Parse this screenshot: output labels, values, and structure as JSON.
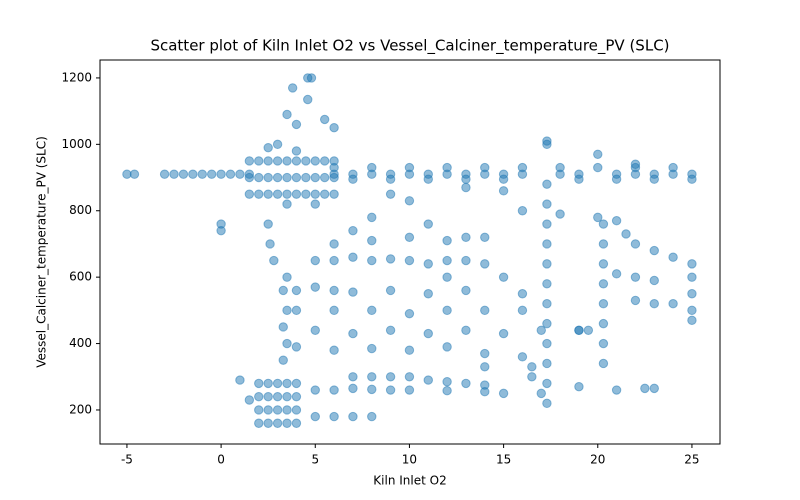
{
  "chart_data": {
    "type": "scatter",
    "title": "Scatter plot of Kiln Inlet O2 vs Vessel_Calciner_temperature_PV (SLC)",
    "x_label": "Kiln Inlet O2",
    "y_label": "Vessel_Calciner_temperature_PV (SLC)",
    "color": "#1f77b4",
    "grid": false,
    "xlim": [
      -6.43,
      26.49
    ],
    "ylim": [
      97.5,
      1254
    ],
    "xticks": [
      -5,
      0,
      5,
      10,
      15,
      20,
      25
    ],
    "yticks": [
      200,
      400,
      600,
      800,
      1000,
      1200
    ],
    "x": [
      -3,
      -2.5,
      -2,
      -1.5,
      -1,
      -0.5,
      0,
      0.5,
      1,
      1.5,
      6,
      7,
      8,
      9,
      10,
      11,
      12,
      13,
      14,
      15,
      16,
      18,
      19,
      21,
      22,
      23,
      24,
      25,
      6,
      8,
      10,
      12,
      14,
      16,
      18,
      20,
      22,
      24,
      7,
      9,
      11,
      13,
      15,
      19,
      21,
      23,
      25,
      1.5,
      1.5,
      1.5,
      2,
      2,
      2,
      2.5,
      2.5,
      2.5,
      3,
      3,
      3,
      3.5,
      3.5,
      3.5,
      4,
      4,
      4,
      4.5,
      4.5,
      4.5,
      5,
      5,
      5,
      5.5,
      5.5,
      5.5,
      6,
      6,
      6,
      2.5,
      3,
      4,
      3.5,
      5,
      -5,
      -4.6,
      0,
      0,
      3.8,
      4.8,
      4.6,
      4.6,
      3.5,
      4,
      5.5,
      6,
      2,
      2,
      2,
      2,
      2.5,
      2.5,
      2.5,
      2.5,
      3,
      3,
      3,
      3,
      3.5,
      3.5,
      3.5,
      3.5,
      4,
      4,
      4,
      4,
      1.5,
      1,
      5,
      6,
      7,
      8,
      5,
      6,
      3.3,
      3.5,
      3.3,
      3.5,
      3.3,
      3.5,
      2.8,
      2.6,
      2.5,
      7,
      8,
      9,
      10,
      11,
      12,
      13,
      14,
      7,
      8,
      9,
      10,
      12,
      14,
      15,
      5,
      6,
      7,
      8,
      9,
      10,
      11,
      12,
      13,
      14,
      4,
      5,
      6,
      7,
      9,
      11,
      13,
      4,
      6,
      8,
      10,
      12,
      14,
      16,
      5,
      7,
      9,
      11,
      13,
      15,
      17,
      19,
      4,
      6,
      8,
      10,
      12,
      14,
      16,
      6,
      8,
      10,
      12,
      13,
      14,
      7,
      9,
      10,
      13,
      15,
      16,
      18,
      11,
      8,
      12,
      15,
      14,
      16,
      17,
      19,
      21,
      22.5,
      23,
      17.3,
      17.3,
      17.3,
      17.3,
      17.3,
      17.3,
      17.3,
      17.3,
      17.3,
      17.3,
      17.3,
      17.3,
      17.3,
      16.5,
      16.5,
      20.3,
      20.3,
      20.3,
      20.3,
      20.3,
      20.3,
      20.3,
      20.3,
      19.5,
      19,
      20,
      21,
      21.5,
      22,
      23,
      24,
      25,
      25,
      25,
      25,
      25,
      22,
      23,
      24,
      21,
      22,
      23,
      20,
      17.3,
      22
    ],
    "values": [
      910,
      910,
      910,
      910,
      910,
      910,
      910,
      910,
      910,
      910,
      910,
      910,
      910,
      910,
      910,
      910,
      910,
      910,
      910,
      910,
      910,
      910,
      910,
      910,
      910,
      910,
      910,
      910,
      930,
      930,
      930,
      930,
      930,
      930,
      930,
      930,
      930,
      930,
      895,
      895,
      895,
      895,
      895,
      895,
      895,
      895,
      895,
      850,
      900,
      950,
      850,
      900,
      950,
      850,
      900,
      950,
      850,
      900,
      950,
      850,
      900,
      950,
      850,
      900,
      950,
      850,
      900,
      950,
      850,
      900,
      950,
      850,
      900,
      950,
      850,
      900,
      950,
      990,
      1000,
      980,
      820,
      820,
      910,
      910,
      760,
      740,
      1170,
      1200,
      1200,
      1135,
      1090,
      1060,
      1075,
      1050,
      160,
      200,
      240,
      280,
      160,
      200,
      240,
      280,
      160,
      200,
      240,
      280,
      160,
      200,
      240,
      280,
      160,
      200,
      240,
      280,
      230,
      290,
      180,
      180,
      180,
      180,
      260,
      260,
      350,
      400,
      450,
      500,
      560,
      600,
      650,
      700,
      760,
      300,
      300,
      300,
      300,
      290,
      285,
      280,
      275,
      265,
      262,
      260,
      260,
      258,
      255,
      250,
      650,
      650,
      660,
      650,
      655,
      650,
      640,
      650,
      650,
      640,
      560,
      570,
      560,
      555,
      560,
      550,
      560,
      500,
      500,
      500,
      490,
      500,
      500,
      500,
      440,
      430,
      440,
      430,
      440,
      430,
      440,
      440,
      390,
      380,
      385,
      380,
      390,
      370,
      360,
      700,
      710,
      720,
      710,
      720,
      720,
      740,
      850,
      830,
      870,
      860,
      800,
      790,
      760,
      780,
      600,
      600,
      330,
      550,
      250,
      270,
      260,
      265,
      265,
      220,
      280,
      340,
      400,
      460,
      520,
      580,
      640,
      700,
      760,
      820,
      880,
      1000,
      330,
      300,
      340,
      400,
      460,
      520,
      580,
      640,
      700,
      760,
      440,
      440,
      780,
      770,
      730,
      700,
      680,
      660,
      640,
      600,
      550,
      500,
      470,
      530,
      520,
      520,
      610,
      600,
      590,
      970,
      1010,
      940
    ]
  }
}
